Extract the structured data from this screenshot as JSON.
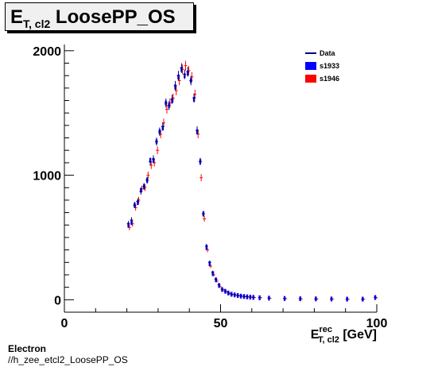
{
  "title": {
    "main": "E",
    "sub": "T, cl2",
    "rest": " LoosePP_OS"
  },
  "footer": {
    "line1": "Electron",
    "line2": "//h_zee_etcl2_LoosePP_OS"
  },
  "colors": {
    "data": "#00007f",
    "s1933": "#0000ff",
    "s1946": "#ff0000"
  },
  "chart_data": {
    "type": "scatter",
    "xlabel": {
      "main": "E",
      "sup": "rec",
      "sub": "T, cl2",
      "unit": " [GeV]"
    },
    "xlim": [
      0,
      100
    ],
    "ylim": [
      -100,
      2050
    ],
    "xticks": [
      0,
      50,
      100
    ],
    "yticks": [
      0,
      1000,
      2000
    ],
    "legend": {
      "position": "top-right",
      "entries": [
        "Data",
        "s1933",
        "s1946"
      ]
    },
    "grid": false,
    "x": [
      20.5,
      21.5,
      22.5,
      23.5,
      24.5,
      25.5,
      26.5,
      27.5,
      28.5,
      29.5,
      30.5,
      31.5,
      32.5,
      33.5,
      34.5,
      35.5,
      36.5,
      37.5,
      38.5,
      39.5,
      40.5,
      41.5,
      42.5,
      43.5,
      44.5,
      45.5,
      46.5,
      47.5,
      48.5,
      49.5,
      50.5,
      51.5,
      52.5,
      53.5,
      54.5,
      55.5,
      56.5,
      57.5,
      58.5,
      59.5,
      60.5,
      62.5,
      65.5,
      70.5,
      75.5,
      80.5,
      85.5,
      90.5,
      95.5,
      99.5
    ],
    "series": [
      {
        "name": "Data",
        "values": [
          610,
          640,
          760,
          790,
          870,
          910,
          960,
          1110,
          1130,
          1270,
          1350,
          1390,
          1580,
          1560,
          1610,
          1720,
          1800,
          1860,
          1810,
          1830,
          1760,
          1620,
          1360,
          1110,
          690,
          430,
          300,
          220,
          165,
          120,
          85,
          70,
          55,
          45,
          40,
          35,
          30,
          27,
          24,
          22,
          20,
          17,
          14,
          10,
          8,
          7,
          6,
          5,
          5,
          20
        ]
      },
      {
        "name": "s1933",
        "values": [
          600,
          620,
          760,
          780,
          880,
          910,
          960,
          1120,
          1120,
          1270,
          1350,
          1380,
          1580,
          1560,
          1600,
          1710,
          1790,
          1850,
          1800,
          1820,
          1760,
          1610,
          1350,
          1110,
          690,
          420,
          290,
          210,
          160,
          115,
          82,
          68,
          54,
          44,
          39,
          34,
          29,
          26,
          23,
          21,
          19,
          16,
          13,
          10,
          8,
          7,
          6,
          5,
          5,
          18
        ]
      },
      {
        "name": "s1946",
        "values": [
          580,
          610,
          740,
          800,
          890,
          900,
          1000,
          1080,
          1100,
          1200,
          1330,
          1420,
          1530,
          1580,
          1620,
          1680,
          1760,
          1850,
          1880,
          1840,
          1790,
          1650,
          1330,
          980,
          650,
          400,
          270,
          200,
          150,
          105,
          80,
          65,
          50,
          42,
          37,
          32,
          28,
          25,
          22,
          20,
          18,
          16,
          12,
          9,
          7,
          6,
          5,
          4,
          4,
          15
        ]
      }
    ]
  }
}
